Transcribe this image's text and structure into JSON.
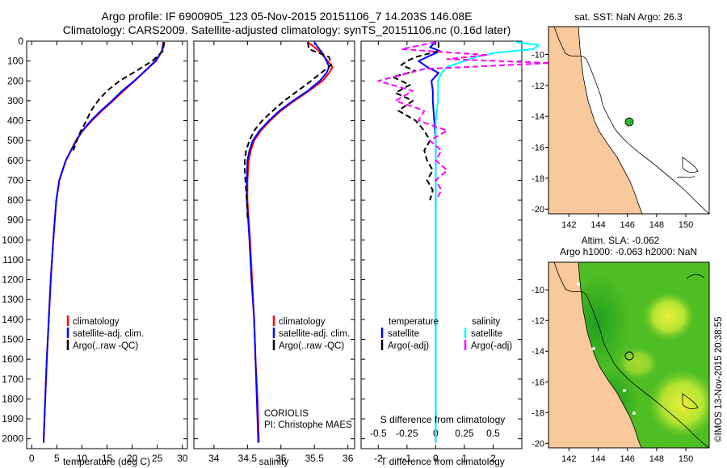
{
  "title": {
    "line1": "Argo profile: IF 6900905_123 05-Nov-2015 20151106_7 14.203S 146.08E",
    "line2": "Climatology: CARS2009. Satellite-adjusted climatology: synTS_20151106.nc (0.16d later)"
  },
  "colors": {
    "climatology": "#ff0000",
    "satellite": "#0000ff",
    "argo": "#000000",
    "sal_satellite": "#00ffff",
    "sal_argo": "#ff00ff",
    "land": "#f9c99c",
    "sla_bright": "#e8ee3a",
    "sla_mid": "#7fd12a",
    "sla_dark": "#1fa01f",
    "marker": "#2cb82c"
  },
  "depth_axis": {
    "ticks": [
      "0",
      "100",
      "200",
      "300",
      "400",
      "500",
      "600",
      "700",
      "800",
      "900",
      "1000",
      "1100",
      "1200",
      "1300",
      "1400",
      "1500",
      "1600",
      "1700",
      "1800",
      "1900",
      "2000"
    ]
  },
  "chart_data": [
    {
      "type": "line",
      "panel": "temperature",
      "xlabel": "temperature (deg C)",
      "xlim": [
        -1,
        31
      ],
      "ylim": [
        2050,
        0
      ],
      "xticks": [
        "0",
        "5",
        "10",
        "15",
        "20",
        "25",
        "30"
      ],
      "legend": [
        "climatology",
        "satellite-adj. clim.",
        "Argo(..raw -QC)"
      ],
      "series": [
        {
          "name": "climatology",
          "depth": [
            5,
            50,
            100,
            150,
            200,
            250,
            300,
            350,
            400,
            450,
            500,
            600,
            700,
            800,
            900,
            1000,
            1200,
            1400,
            1600,
            1800,
            2000,
            2020
          ],
          "values": [
            26.2,
            25.9,
            24.8,
            22.5,
            20.5,
            18.3,
            16.2,
            14,
            12,
            10.2,
            8.8,
            6.8,
            5.5,
            4.9,
            4.6,
            4.3,
            3.8,
            3.4,
            3.0,
            2.7,
            2.4,
            2.4
          ]
        },
        {
          "name": "satellite-adj. clim.",
          "depth": [
            5,
            50,
            100,
            150,
            200,
            250,
            300,
            350,
            400,
            450,
            500,
            600,
            700,
            800,
            900,
            1000,
            1200,
            1400,
            1600,
            1800,
            2000,
            2020
          ],
          "values": [
            26.3,
            26.0,
            24.6,
            22.6,
            20.4,
            18.0,
            16.0,
            13.8,
            11.8,
            10.1,
            8.9,
            6.8,
            5.5,
            4.9,
            4.6,
            4.3,
            3.8,
            3.4,
            3.0,
            2.7,
            2.4,
            2.4
          ]
        },
        {
          "name": "Argo(..raw -QC)",
          "depth": [
            5,
            50,
            100,
            150,
            200,
            250,
            300,
            350,
            400,
            450,
            500,
            550
          ],
          "values": [
            26.4,
            26.1,
            24.0,
            20.8,
            17.5,
            15.0,
            13.2,
            11.8,
            10.9,
            9.8,
            9.0,
            8.3
          ]
        }
      ]
    },
    {
      "type": "line",
      "panel": "salinity",
      "xlabel": "salinity",
      "xlim": [
        33.7,
        36.1
      ],
      "ylim": [
        2050,
        0
      ],
      "xticks": [
        "34",
        "34.5",
        "35",
        "35.5",
        "36"
      ],
      "legend": [
        "climatology",
        "satellite-adj. clim.",
        "Argo(..raw -QC)"
      ],
      "annotation": [
        "CORIOLIS",
        "PI: Christophe MAES"
      ],
      "series": [
        {
          "name": "climatology",
          "depth": [
            5,
            30,
            60,
            100,
            130,
            160,
            200,
            250,
            300,
            350,
            400,
            450,
            500,
            550,
            600,
            700,
            800,
            900,
            1000,
            1200,
            1400,
            1600,
            1800,
            2000,
            2020
          ],
          "values": [
            35.4,
            35.5,
            35.6,
            35.7,
            35.77,
            35.72,
            35.62,
            35.42,
            35.2,
            35.0,
            34.84,
            34.7,
            34.6,
            34.55,
            34.52,
            34.5,
            34.5,
            34.52,
            34.54,
            34.57,
            34.6,
            34.62,
            34.65,
            34.67,
            34.67
          ]
        },
        {
          "name": "satellite-adj. clim.",
          "depth": [
            5,
            30,
            60,
            100,
            130,
            160,
            200,
            250,
            300,
            350,
            400,
            450,
            500,
            550,
            600,
            700,
            800,
            900,
            1000,
            1200,
            1400,
            1600,
            1800,
            2000,
            2020
          ],
          "values": [
            35.5,
            35.55,
            35.62,
            35.68,
            35.72,
            35.68,
            35.58,
            35.4,
            35.18,
            34.98,
            34.82,
            34.68,
            34.58,
            34.53,
            34.5,
            34.49,
            34.49,
            34.51,
            34.53,
            34.56,
            34.6,
            34.62,
            34.64,
            34.66,
            34.66
          ]
        },
        {
          "name": "Argo(..raw -QC)",
          "depth": [
            5,
            40,
            80,
            120,
            160,
            200,
            250,
            300,
            350,
            400,
            450,
            500,
            550,
            600,
            650,
            700,
            750,
            800,
            850,
            900
          ],
          "values": [
            35.4,
            35.42,
            35.72,
            35.75,
            35.6,
            35.45,
            35.25,
            35.05,
            34.88,
            34.72,
            34.6,
            34.53,
            34.48,
            34.46,
            34.46,
            34.47,
            34.48,
            34.49,
            34.5,
            34.5
          ]
        }
      ]
    },
    {
      "type": "line",
      "panel": "differences",
      "xlabel": "T difference from climatology",
      "xlabel_top": "S difference from climatology",
      "xlim": [
        -2.6,
        3
      ],
      "ylim": [
        2050,
        0
      ],
      "xticks": [
        "-2",
        "-1",
        "0",
        "1",
        "2"
      ],
      "xticks_s": [
        "-0.5",
        "-0.25",
        "0",
        "0.25",
        "0.5"
      ],
      "legend_titles": [
        "temperature",
        "salinity"
      ],
      "legend": [
        "satellite",
        "Argo(-adj)",
        "satellite",
        "Argo(-adj)"
      ],
      "series": [
        {
          "name": "temperature satellite",
          "depth": [
            5,
            30,
            50,
            80,
            100,
            130,
            160,
            200,
            250,
            300,
            400,
            500,
            700,
            1000,
            1500,
            2020
          ],
          "values": [
            0.0,
            -0.2,
            0.15,
            -0.3,
            -0.6,
            -0.3,
            0.1,
            -0.15,
            -0.1,
            -0.1,
            -0.05,
            0.0,
            0.0,
            0.0,
            0.0,
            0.0
          ]
        },
        {
          "name": "temperature Argo(-adj)",
          "depth": [
            5,
            50,
            80,
            100,
            120,
            150,
            180,
            220,
            260,
            300,
            350,
            400,
            450,
            500,
            550,
            600,
            650,
            700,
            750,
            800
          ],
          "values": [
            0.1,
            0.1,
            -0.7,
            -1.0,
            -1.2,
            -0.7,
            -1.5,
            -0.9,
            -1.4,
            -0.8,
            -1.3,
            -0.7,
            -0.4,
            -0.2,
            -0.4,
            -0.3,
            -0.1,
            -0.3,
            -0.1,
            -0.2
          ]
        },
        {
          "name": "salinity satellite",
          "depth": [
            5,
            20,
            40,
            60,
            80,
            100,
            130,
            160,
            200,
            300,
            400,
            600,
            1000,
            1500,
            2020
          ],
          "values": [
            0.7,
            0.9,
            0.85,
            0.5,
            0.35,
            0.25,
            0.1,
            0.05,
            0.02,
            0.02,
            0.0,
            0.0,
            0.0,
            0.0,
            0.0
          ]
        },
        {
          "name": "salinity Argo(-adj)",
          "depth": [
            5,
            40,
            70,
            90,
            110,
            140,
            170,
            200,
            250,
            300,
            350,
            400,
            450,
            500,
            550,
            600,
            650,
            700,
            750,
            800
          ],
          "values": [
            0.0,
            -0.3,
            0.45,
            0.1,
            1.0,
            -0.1,
            -0.3,
            -0.5,
            -0.2,
            -0.35,
            -0.1,
            -0.15,
            0.1,
            -0.05,
            0.05,
            0.0,
            0.1,
            0.0,
            0.05,
            0.0
          ]
        }
      ]
    }
  ],
  "map_sst": {
    "title": "sat. SST: NaN Argo: 26.3",
    "xticks": [
      "142",
      "144",
      "146",
      "148",
      "150"
    ],
    "yticks": [
      "-10",
      "-12",
      "-14",
      "-16",
      "-18",
      "-20"
    ]
  },
  "map_sla": {
    "title_line1": "Altim. SLA: -0.062",
    "title_line2": "Argo h1000: -0.063 h2000: NaN",
    "xticks": [
      "142",
      "144",
      "146",
      "148",
      "150"
    ],
    "yticks": [
      "-10",
      "-12",
      "-14",
      "-16",
      "-18",
      "-20"
    ]
  },
  "credit": "©IMOS 13-Nov-2015 20:38:55"
}
